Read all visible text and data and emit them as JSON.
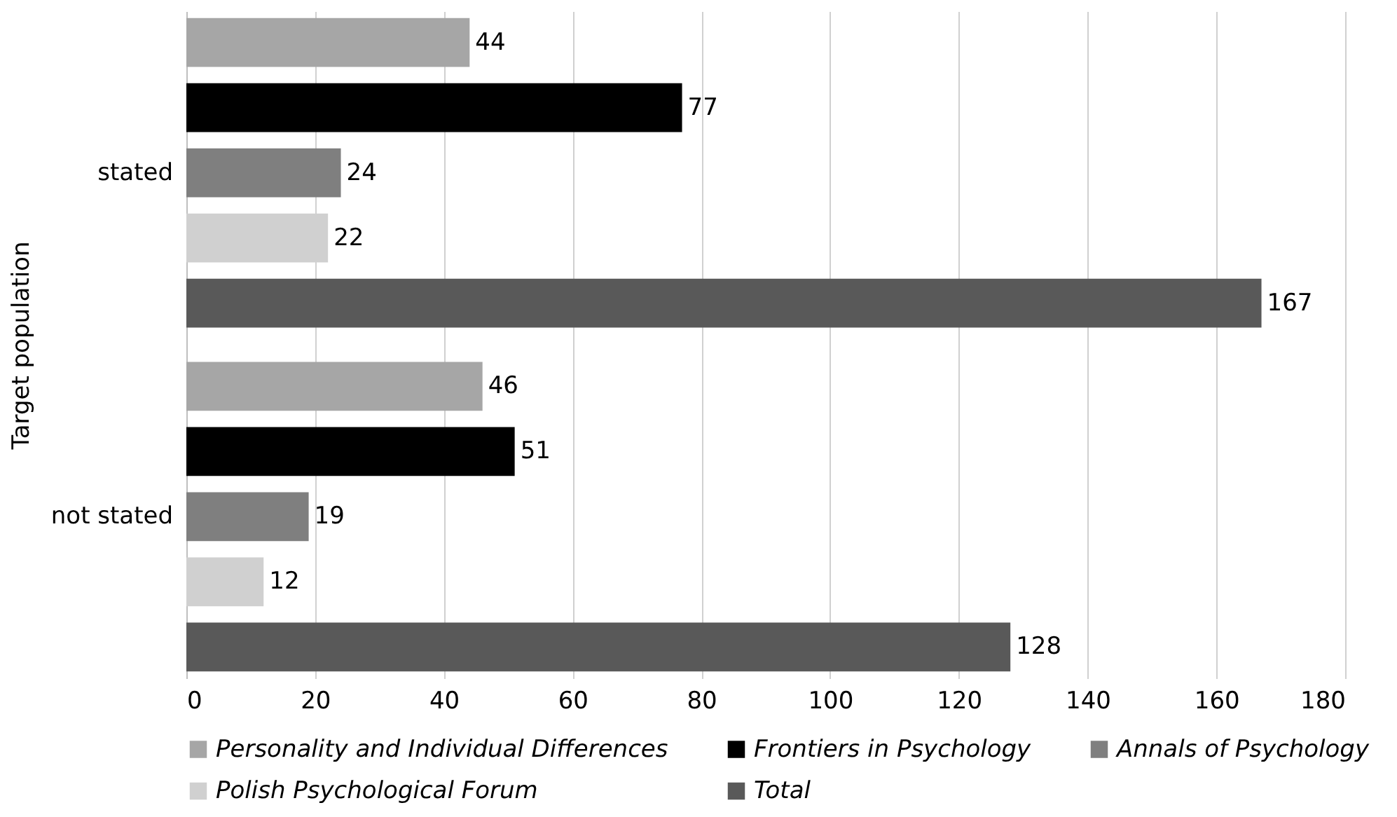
{
  "chart_data": {
    "type": "bar",
    "orientation": "horizontal",
    "ylabel": "Target population",
    "categories": [
      "stated",
      "not stated"
    ],
    "series": [
      {
        "name": "Personality and Individual Differences",
        "color": "#a6a6a6",
        "values": [
          44,
          46
        ]
      },
      {
        "name": "Frontiers in Psychology",
        "color": "#000000",
        "values": [
          77,
          51
        ]
      },
      {
        "name": "Annals of Psychology",
        "color": "#7f7f7f",
        "values": [
          24,
          19
        ]
      },
      {
        "name": "Polish Psychological Forum",
        "color": "#d0d0d0",
        "values": [
          22,
          12
        ]
      },
      {
        "name": "Total",
        "color": "#595959",
        "values": [
          167,
          128
        ]
      }
    ],
    "xlim": [
      0,
      180
    ],
    "xticks": [
      0,
      20,
      40,
      60,
      80,
      100,
      120,
      140,
      160,
      180
    ],
    "grid": "x",
    "legend": "bottom",
    "data_labels": true
  }
}
